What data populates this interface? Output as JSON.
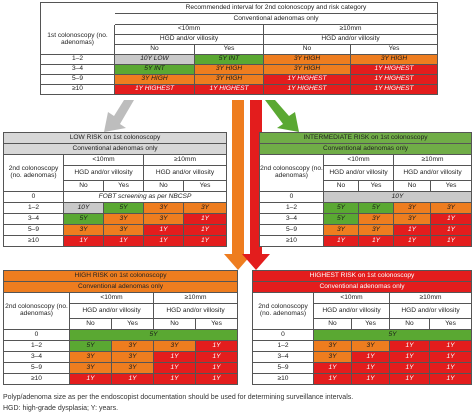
{
  "top": {
    "title_line1": "Recommended interval for 2nd colonoscopy and risk category",
    "title_line2": "Conventional adenomas only",
    "row_header": "1st colonoscopy (no. adenomas)",
    "size_small": "<10mm",
    "size_large": "≥10mm",
    "hgd": "HGD and/or villosity",
    "no": "No",
    "yes": "Yes",
    "rows": [
      {
        "label": "1–2",
        "cells": [
          "10Y LOW",
          "5Y INT",
          "3Y HIGH",
          "3Y HIGH"
        ]
      },
      {
        "label": "3–4",
        "cells": [
          "5Y INT",
          "3Y HIGH",
          "3Y HIGH",
          "1Y HIGHEST"
        ]
      },
      {
        "label": "5–9",
        "cells": [
          "3Y HIGH",
          "3Y HIGH",
          "1Y HIGHEST",
          "1Y HIGHEST"
        ]
      },
      {
        "label": "≥10",
        "cells": [
          "1Y HIGHEST",
          "1Y HIGHEST",
          "1Y HIGHEST",
          "1Y HIGHEST"
        ]
      }
    ]
  },
  "low": {
    "title_line1": "LOW RISK on 1st colonoscopy",
    "title_line2": "Conventional adenomas only",
    "row_header": "2nd colonoscopy (no. adenomas)",
    "size_small": "<10mm",
    "size_large": "≥10mm",
    "hgd": "HGD and/or villosity",
    "no": "No",
    "yes": "Yes",
    "zero_label": "0",
    "zero_text": "FOBT screening as per NBCSP",
    "rows": [
      {
        "label": "1–2",
        "cells": [
          "10Y",
          "5Y",
          "3Y",
          "3Y"
        ]
      },
      {
        "label": "3–4",
        "cells": [
          "5Y",
          "3Y",
          "3Y",
          "1Y"
        ]
      },
      {
        "label": "5–9",
        "cells": [
          "3Y",
          "3Y",
          "1Y",
          "1Y"
        ]
      },
      {
        "label": "≥10",
        "cells": [
          "1Y",
          "1Y",
          "1Y",
          "1Y"
        ]
      }
    ]
  },
  "intermediate": {
    "title_line1": "INTERMEDIATE RISK on 1st colonoscopy",
    "title_line2": "Conventional adenomas only",
    "row_header": "2nd colonoscopy (no. adenomas)",
    "size_small": "<10mm",
    "size_large": "≥10mm",
    "hgd": "HGD and/or villosity",
    "no": "No",
    "yes": "Yes",
    "zero_label": "0",
    "zero_text": "10Y",
    "rows": [
      {
        "label": "1–2",
        "cells": [
          "5Y",
          "5Y",
          "3Y",
          "3Y"
        ]
      },
      {
        "label": "3–4",
        "cells": [
          "5Y",
          "3Y",
          "3Y",
          "1Y"
        ]
      },
      {
        "label": "5–9",
        "cells": [
          "3Y",
          "3Y",
          "1Y",
          "1Y"
        ]
      },
      {
        "label": "≥10",
        "cells": [
          "1Y",
          "1Y",
          "1Y",
          "1Y"
        ]
      }
    ]
  },
  "high": {
    "title_line1": "HIGH RISK on 1st colonoscopy",
    "title_line2": "Conventional adenomas only",
    "row_header": "2nd colonoscopy (no. adenomas)",
    "size_small": "<10mm",
    "size_large": "≥10mm",
    "hgd": "HGD and/or villosity",
    "no": "No",
    "yes": "Yes",
    "zero_label": "0",
    "zero_text": "5Y",
    "rows": [
      {
        "label": "1–2",
        "cells": [
          "5Y",
          "3Y",
          "3Y",
          "1Y"
        ]
      },
      {
        "label": "3–4",
        "cells": [
          "3Y",
          "3Y",
          "1Y",
          "1Y"
        ]
      },
      {
        "label": "5–9",
        "cells": [
          "3Y",
          "3Y",
          "1Y",
          "1Y"
        ]
      },
      {
        "label": "≥10",
        "cells": [
          "1Y",
          "1Y",
          "1Y",
          "1Y"
        ]
      }
    ]
  },
  "highest": {
    "title_line1": "HIGHEST RISK on 1st colonoscopy",
    "title_line2": "Conventional adenomas only",
    "row_header": "2nd colonoscopy (no. adenomas)",
    "size_small": "<10mm",
    "size_large": "≥10mm",
    "hgd": "HGD and/or villosity",
    "no": "No",
    "yes": "Yes",
    "zero_label": "0",
    "zero_text": "5Y",
    "rows": [
      {
        "label": "1–2",
        "cells": [
          "3Y",
          "3Y",
          "1Y",
          "1Y"
        ]
      },
      {
        "label": "3–4",
        "cells": [
          "3Y",
          "1Y",
          "1Y",
          "1Y"
        ]
      },
      {
        "label": "5–9",
        "cells": [
          "1Y",
          "1Y",
          "1Y",
          "1Y"
        ]
      },
      {
        "label": "≥10",
        "cells": [
          "1Y",
          "1Y",
          "1Y",
          "1Y"
        ]
      }
    ]
  },
  "footnote_line1": "Polyp/adenoma size as per the endoscopist documentation should be used for determining surveillance intervals.",
  "footnote_line2": "HGD: high-grade dysplasia; Y: years.",
  "colors": {
    "green": "#5aa832",
    "grey": "#c9c9c9",
    "orange": "#ee7d1f",
    "red": "#e31d1d"
  }
}
